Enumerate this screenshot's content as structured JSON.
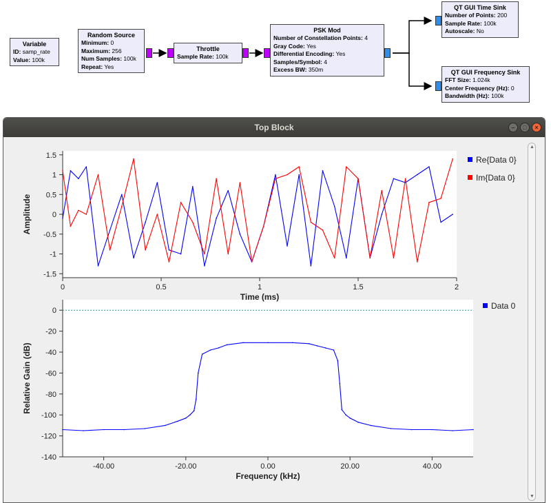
{
  "flowgraph": {
    "variable": {
      "title": "Variable",
      "rows": [
        {
          "k": "ID:",
          "v": "samp_rate"
        },
        {
          "k": "Value:",
          "v": "100k"
        }
      ]
    },
    "random_source": {
      "title": "Random Source",
      "rows": [
        {
          "k": "Minimum:",
          "v": "0"
        },
        {
          "k": "Maximum:",
          "v": "256"
        },
        {
          "k": "Num Samples:",
          "v": "100k"
        },
        {
          "k": "Repeat:",
          "v": "Yes"
        }
      ]
    },
    "throttle": {
      "title": "Throttle",
      "rows": [
        {
          "k": "Sample Rate:",
          "v": "100k"
        }
      ]
    },
    "psk_mod": {
      "title": "PSK Mod",
      "rows": [
        {
          "k": "Number of Constellation Points:",
          "v": "4"
        },
        {
          "k": "Gray Code:",
          "v": "Yes"
        },
        {
          "k": "Differential Encoding:",
          "v": "Yes"
        },
        {
          "k": "Samples/Symbol:",
          "v": "4"
        },
        {
          "k": "Excess BW:",
          "v": "350m"
        }
      ]
    },
    "time_sink": {
      "title": "QT GUI Time Sink",
      "rows": [
        {
          "k": "Number of Points:",
          "v": "200"
        },
        {
          "k": "Sample Rate:",
          "v": "100k"
        },
        {
          "k": "Autoscale:",
          "v": "No"
        }
      ]
    },
    "freq_sink": {
      "title": "QT GUI Frequency Sink",
      "rows": [
        {
          "k": "FFT Size:",
          "v": "1.024k"
        },
        {
          "k": "Center Frequency (Hz):",
          "v": "0"
        },
        {
          "k": "Bandwidth (Hz):",
          "v": "100k"
        }
      ]
    },
    "colors": {
      "message_port": "#c000ff",
      "complex_port": "#2c8ff0",
      "block_bg": "#ececfa"
    }
  },
  "window": {
    "title": "Top Block",
    "buttons": {
      "minimize": "–",
      "maximize": "□",
      "close": "×"
    }
  },
  "chart_data": [
    {
      "type": "line",
      "xlabel": "Time (ms)",
      "ylabel": "Amplitude",
      "xlim": [
        0,
        2
      ],
      "ylim": [
        -1.6,
        1.6
      ],
      "xticks": [
        "0",
        "0.5",
        "1",
        "1.5",
        "2"
      ],
      "yticks": [
        "1.5",
        "1",
        "0.5",
        "0",
        "-0.5",
        "-1",
        "-1.5"
      ],
      "legend_position": "right",
      "series": [
        {
          "name": "Re{Data 0}",
          "color": "#0000ff",
          "x": [
            0,
            0.04,
            0.08,
            0.12,
            0.18,
            0.24,
            0.3,
            0.36,
            0.42,
            0.48,
            0.54,
            0.6,
            0.66,
            0.72,
            0.78,
            0.84,
            0.9,
            0.96,
            1.02,
            1.08,
            1.14,
            1.2,
            1.26,
            1.32,
            1.38,
            1.44,
            1.5,
            1.56,
            1.62,
            1.68,
            1.74,
            1.8,
            1.86,
            1.92,
            1.98
          ],
          "values": [
            -0.1,
            1.1,
            0.9,
            1.2,
            -1.3,
            -0.4,
            0.5,
            -1.1,
            -0.2,
            0.8,
            -0.9,
            -1.0,
            0.7,
            -1.3,
            -0.1,
            0.6,
            -0.5,
            -1.2,
            -0.3,
            1.0,
            -0.8,
            1.0,
            -1.3,
            1.1,
            0.2,
            -1.1,
            0.9,
            -1.1,
            0.0,
            0.9,
            0.8,
            1.0,
            1.2,
            -0.2,
            0.0
          ]
        },
        {
          "name": "Im{Data 0}",
          "color": "#ff0000",
          "x": [
            0,
            0.04,
            0.08,
            0.12,
            0.18,
            0.24,
            0.3,
            0.36,
            0.42,
            0.48,
            0.54,
            0.6,
            0.66,
            0.72,
            0.78,
            0.84,
            0.9,
            0.96,
            1.02,
            1.08,
            1.14,
            1.2,
            1.26,
            1.32,
            1.38,
            1.44,
            1.5,
            1.56,
            1.62,
            1.68,
            1.74,
            1.8,
            1.86,
            1.92,
            1.98
          ],
          "values": [
            1.1,
            -0.3,
            0.1,
            0.0,
            1.0,
            -0.9,
            0.2,
            1.4,
            -0.9,
            0.0,
            -1.2,
            0.3,
            -0.2,
            -1.0,
            0.9,
            -1.0,
            0.8,
            -1.2,
            -0.3,
            0.9,
            1.0,
            1.2,
            -0.2,
            -0.4,
            -1.1,
            1.2,
            0.9,
            -1.1,
            0.6,
            -1.1,
            0.9,
            -1.2,
            0.3,
            0.4,
            1.4
          ]
        }
      ]
    },
    {
      "type": "line",
      "xlabel": "Frequency (kHz)",
      "ylabel": "Relative Gain (dB)",
      "xlim": [
        -50,
        50
      ],
      "ylim": [
        -140,
        10
      ],
      "xticks": [
        "-40.00",
        "-20.00",
        "0.00",
        "20.00",
        "40.00"
      ],
      "yticks": [
        "0",
        "-20",
        "-40",
        "-60",
        "-80",
        "-100",
        "-120",
        "-140"
      ],
      "legend_position": "right",
      "reference_line": {
        "value": 0,
        "color": "#2a9d9d"
      },
      "series": [
        {
          "name": "Data 0",
          "color": "#0000ff",
          "x": [
            -50,
            -45,
            -40,
            -35,
            -30,
            -25,
            -22,
            -20,
            -19,
            -18,
            -17.5,
            -17,
            -16,
            -14,
            -12,
            -10,
            -6,
            0,
            6,
            10,
            12,
            14,
            16,
            17,
            17.5,
            18,
            19,
            20,
            22,
            25,
            30,
            35,
            40,
            45,
            50
          ],
          "values": [
            -114,
            -115,
            -114,
            -114,
            -113,
            -110,
            -106,
            -103,
            -100,
            -96,
            -85,
            -60,
            -42,
            -38,
            -36,
            -33,
            -31,
            -31,
            -31,
            -32,
            -34,
            -36,
            -38,
            -48,
            -70,
            -95,
            -100,
            -103,
            -107,
            -110,
            -113,
            -114,
            -114,
            -115,
            -114
          ]
        }
      ]
    }
  ]
}
